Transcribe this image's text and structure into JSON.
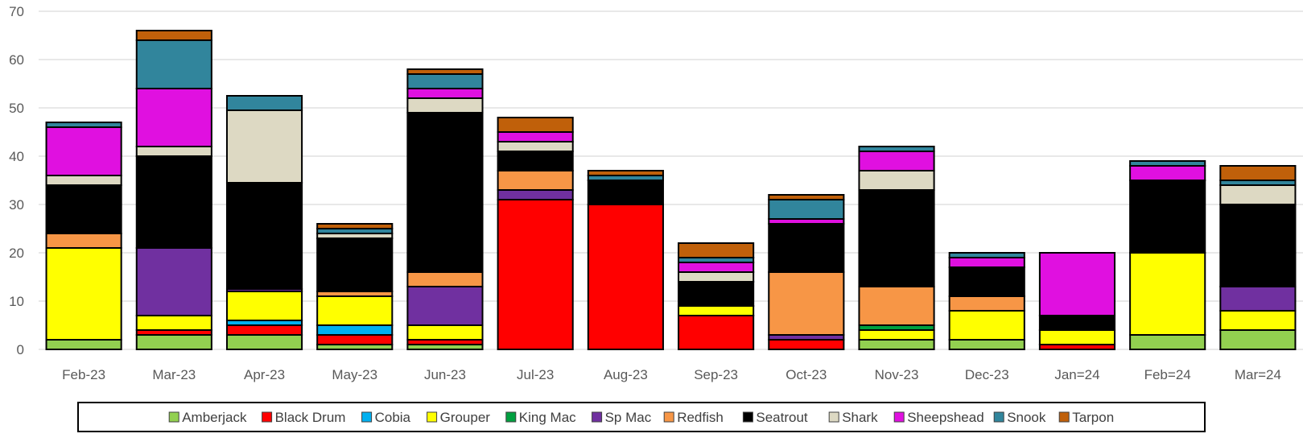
{
  "chart_data": {
    "type": "bar",
    "stacked": true,
    "title": "",
    "xlabel": "",
    "ylabel": "",
    "ylim": [
      0,
      70
    ],
    "yticks": [
      0,
      10,
      20,
      30,
      40,
      50,
      60,
      70
    ],
    "grid": true,
    "legend_position": "bottom",
    "categories": [
      "Feb-23",
      "Mar-23",
      "Apr-23",
      "May-23",
      "Jun-23",
      "Jul-23",
      "Aug-23",
      "Sep-23",
      "Oct-23",
      "Nov-23",
      "Dec-23",
      "Jan=24",
      "Feb=24",
      "Mar=24"
    ],
    "series": [
      {
        "name": "Amberjack",
        "color": "#92D050",
        "values": [
          2,
          3,
          3,
          1,
          1,
          0,
          0,
          0,
          0,
          2,
          2,
          0,
          3,
          4
        ]
      },
      {
        "name": "Black Drum",
        "color": "#FF0000",
        "values": [
          0,
          1,
          2,
          2,
          1,
          31,
          30,
          7,
          2,
          0,
          0,
          1,
          0,
          0
        ]
      },
      {
        "name": "Cobia",
        "color": "#00B0F0",
        "values": [
          0,
          0,
          1,
          2,
          0,
          0,
          0,
          0,
          0,
          0,
          0,
          0,
          0,
          0
        ]
      },
      {
        "name": "Grouper",
        "color": "#FFFF00",
        "values": [
          19,
          3,
          6,
          6,
          3,
          0,
          0,
          2,
          0,
          2,
          6,
          3,
          17,
          4
        ]
      },
      {
        "name": "King Mac",
        "color": "#00A040",
        "values": [
          0,
          0,
          0,
          0,
          0,
          0,
          0,
          0,
          0,
          1,
          0,
          0,
          0,
          0
        ]
      },
      {
        "name": "Sp Mac",
        "color": "#7030A0",
        "values": [
          0,
          14,
          0.5,
          0,
          8,
          2,
          0,
          0,
          1,
          0,
          0,
          0,
          0,
          5
        ]
      },
      {
        "name": "Redfish",
        "color": "#F79646",
        "values": [
          3,
          0,
          0,
          1,
          3,
          4,
          0,
          0,
          13,
          8,
          3,
          0,
          0,
          0
        ]
      },
      {
        "name": "Seatrout",
        "color": "#000000",
        "values": [
          10,
          19,
          22,
          11,
          33,
          4,
          5,
          5,
          10,
          20,
          6,
          3,
          15,
          17
        ]
      },
      {
        "name": "Shark",
        "color": "#DDD9C3",
        "values": [
          2,
          2,
          15,
          1,
          3,
          2,
          0,
          2,
          0,
          4,
          0,
          0,
          0,
          4
        ]
      },
      {
        "name": "Sheepshead",
        "color": "#E010E0",
        "values": [
          10,
          12,
          0,
          0,
          2,
          2,
          0,
          2,
          1,
          4,
          2,
          13,
          3,
          0
        ]
      },
      {
        "name": "Snook",
        "color": "#31859C",
        "values": [
          1,
          10,
          3,
          1,
          3,
          0,
          1,
          1,
          4,
          1,
          1,
          0,
          1,
          1
        ]
      },
      {
        "name": "Tarpon",
        "color": "#C0600A",
        "values": [
          0,
          2,
          0,
          1,
          1,
          3,
          1,
          3,
          1,
          0,
          0,
          0,
          0,
          3
        ]
      }
    ]
  }
}
